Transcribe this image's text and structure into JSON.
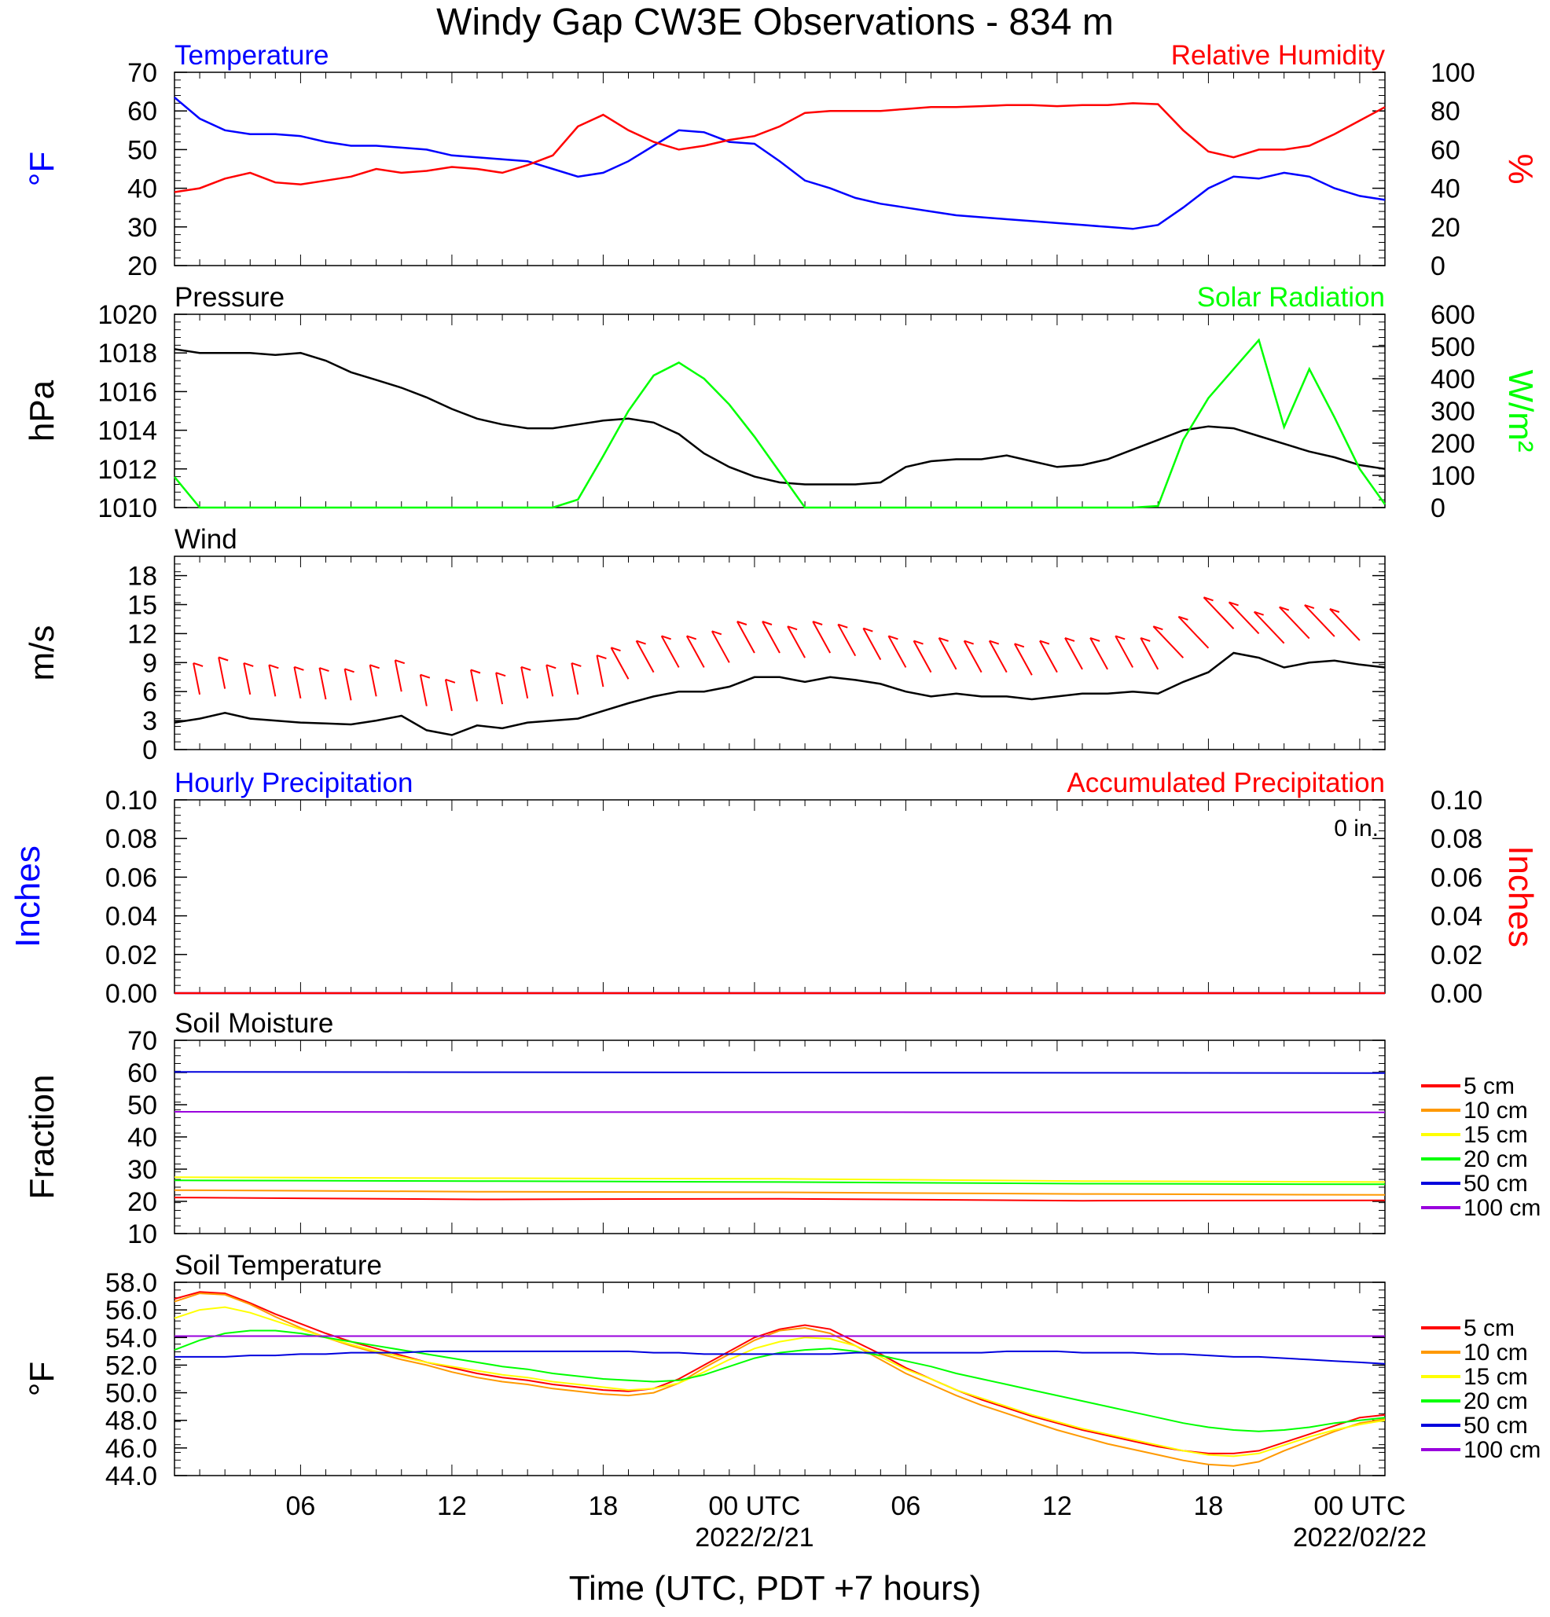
{
  "title": "Windy Gap CW3E Observations - 834 m",
  "x_axis": {
    "label": "Time (UTC, PDT +7 hours)",
    "range_hours": [
      0,
      48
    ],
    "ticks": [
      {
        "hour": 5,
        "label": "06"
      },
      {
        "hour": 11,
        "label": "12"
      },
      {
        "hour": 17,
        "label": "18"
      },
      {
        "hour": 23,
        "label": "00 UTC",
        "sublabel": "2022/2/21"
      },
      {
        "hour": 29,
        "label": "06"
      },
      {
        "hour": 35,
        "label": "12"
      },
      {
        "hour": 41,
        "label": "18"
      },
      {
        "hour": 47,
        "label": "00 UTC",
        "sublabel": "2022/02/22"
      }
    ]
  },
  "colors": {
    "blue": "#0000ff",
    "red": "#ff0000",
    "green": "#00ff00",
    "black": "#000000",
    "orange": "#ff9900",
    "yellow": "#ffff00",
    "soil_green": "#00ff00",
    "navy": "#0000dd",
    "purple": "#9900dd"
  },
  "chart_data": [
    {
      "type": "line",
      "panel": "temperature",
      "left_title": "Temperature",
      "right_title": "Relative Humidity",
      "ylabel_left": "°F",
      "ylabel_right": "%",
      "ylim_left": [
        20,
        70
      ],
      "yticks_left": [
        20,
        30,
        40,
        50,
        60,
        70
      ],
      "ylim_right": [
        0,
        100
      ],
      "yticks_right": [
        0,
        20,
        40,
        60,
        80,
        100
      ],
      "x_hours": [
        0,
        1,
        2,
        3,
        4,
        5,
        6,
        7,
        8,
        9,
        10,
        11,
        12,
        13,
        14,
        15,
        16,
        17,
        18,
        19,
        20,
        21,
        22,
        23,
        24,
        25,
        26,
        27,
        28,
        29,
        30,
        31,
        32,
        33,
        34,
        35,
        36,
        37,
        38,
        39,
        40,
        41,
        42,
        43,
        44,
        45,
        46,
        47,
        48
      ],
      "series": [
        {
          "name": "Temperature",
          "axis": "left",
          "color": "blue",
          "values": [
            63.5,
            58,
            55,
            54,
            54,
            53.5,
            52,
            51,
            51,
            50.5,
            50,
            48.5,
            48,
            47.5,
            47,
            45,
            43,
            44,
            47,
            51,
            55,
            54.5,
            52,
            51.5,
            47,
            42,
            40,
            37.5,
            36,
            35,
            34,
            33,
            32.5,
            32,
            31.5,
            31,
            30.5,
            30,
            29.5,
            30.5,
            35,
            40,
            43,
            42.5,
            44,
            43,
            40,
            38,
            37
          ]
        },
        {
          "name": "Relative Humidity",
          "axis": "right",
          "color": "red",
          "values": [
            38,
            40,
            45,
            48,
            43,
            42,
            44,
            46,
            50,
            48,
            49,
            51,
            50,
            48,
            52,
            57,
            72,
            78,
            70,
            64,
            60,
            62,
            65,
            67,
            72,
            79,
            80,
            80,
            80,
            81,
            82,
            82,
            82.5,
            83,
            83,
            82.5,
            83,
            83,
            84,
            83.5,
            70,
            59,
            56,
            60,
            60,
            62,
            68,
            75,
            82
          ]
        }
      ]
    },
    {
      "type": "line",
      "panel": "pressure",
      "left_title": "Pressure",
      "right_title": "Solar Radiation",
      "ylabel_left": "hPa",
      "ylabel_right": "W/m²",
      "ylim_left": [
        1010,
        1020
      ],
      "yticks_left": [
        1010,
        1012,
        1014,
        1016,
        1018,
        1020
      ],
      "ylim_right": [
        0,
        600
      ],
      "yticks_right": [
        0,
        100,
        200,
        300,
        400,
        500,
        600
      ],
      "x_hours": [
        0,
        1,
        2,
        3,
        4,
        5,
        6,
        7,
        8,
        9,
        10,
        11,
        12,
        13,
        14,
        15,
        16,
        17,
        18,
        19,
        20,
        21,
        22,
        23,
        24,
        25,
        26,
        27,
        28,
        29,
        30,
        31,
        32,
        33,
        34,
        35,
        36,
        37,
        38,
        39,
        40,
        41,
        42,
        43,
        44,
        45,
        46,
        47,
        48
      ],
      "series": [
        {
          "name": "Pressure",
          "axis": "left",
          "color": "black",
          "values": [
            1018.2,
            1018,
            1018,
            1018,
            1017.9,
            1018,
            1017.6,
            1017,
            1016.6,
            1016.2,
            1015.7,
            1015.1,
            1014.6,
            1014.3,
            1014.1,
            1014.1,
            1014.3,
            1014.5,
            1014.6,
            1014.4,
            1013.8,
            1012.8,
            1012.1,
            1011.6,
            1011.3,
            1011.2,
            1011.2,
            1011.2,
            1011.3,
            1012.1,
            1012.4,
            1012.5,
            1012.5,
            1012.7,
            1012.4,
            1012.1,
            1012.2,
            1012.5,
            1013,
            1013.5,
            1014,
            1014.2,
            1014.1,
            1013.7,
            1013.3,
            1012.9,
            1012.6,
            1012.2,
            1012
          ]
        },
        {
          "name": "Solar Radiation",
          "axis": "right",
          "color": "green",
          "values": [
            95,
            0,
            0,
            0,
            0,
            0,
            0,
            0,
            0,
            0,
            0,
            0,
            0,
            0,
            0,
            0,
            25,
            160,
            300,
            410,
            450,
            400,
            320,
            220,
            110,
            0,
            0,
            0,
            0,
            0,
            0,
            0,
            0,
            0,
            0,
            0,
            0,
            0,
            0,
            5,
            210,
            340,
            430,
            520,
            250,
            430,
            280,
            120,
            10
          ]
        }
      ]
    },
    {
      "type": "line",
      "panel": "wind",
      "left_title": "Wind",
      "ylabel_left": "m/s",
      "ylim_left": [
        0,
        20
      ],
      "yticks_left": [
        0,
        3,
        6,
        9,
        12,
        15,
        18
      ],
      "x_hours": [
        0,
        1,
        2,
        3,
        4,
        5,
        6,
        7,
        8,
        9,
        10,
        11,
        12,
        13,
        14,
        15,
        16,
        17,
        18,
        19,
        20,
        21,
        22,
        23,
        24,
        25,
        26,
        27,
        28,
        29,
        30,
        31,
        32,
        33,
        34,
        35,
        36,
        37,
        38,
        39,
        40,
        41,
        42,
        43,
        44,
        45,
        46,
        47,
        48
      ],
      "series": [
        {
          "name": "Wind speed",
          "axis": "left",
          "color": "black",
          "values": [
            2.8,
            3.2,
            3.8,
            3.2,
            3,
            2.8,
            2.7,
            2.6,
            3,
            3.5,
            2,
            1.5,
            2.5,
            2.2,
            2.8,
            3,
            3.2,
            4,
            4.8,
            5.5,
            6,
            6,
            6.5,
            7.5,
            7.5,
            7,
            7.5,
            7.2,
            6.8,
            6,
            5.5,
            5.8,
            5.5,
            5.5,
            5.2,
            5.5,
            5.8,
            5.8,
            6,
            5.8,
            7,
            8,
            10,
            9.5,
            8.5,
            9,
            9.2,
            8.8,
            8.5
          ]
        }
      ]
    },
    {
      "type": "line",
      "panel": "precipitation",
      "left_title": "Hourly Precipitation",
      "right_title": "Accumulated Precipitation",
      "annotation": "0 in.",
      "ylabel_left": "Inches",
      "ylabel_right": "Inches",
      "ylim_left": [
        0,
        0.1
      ],
      "yticks_left": [
        "0.00",
        "0.02",
        "0.04",
        "0.06",
        "0.08",
        "0.10"
      ],
      "ylim_right": [
        0,
        0.1
      ],
      "yticks_right": [
        "0.00",
        "0.02",
        "0.04",
        "0.06",
        "0.08",
        "0.10"
      ],
      "x_hours": [
        0,
        48
      ],
      "series": [
        {
          "name": "Hourly Precipitation",
          "axis": "left",
          "color": "blue",
          "values": [
            0,
            0
          ]
        },
        {
          "name": "Accumulated Precipitation",
          "axis": "right",
          "color": "red",
          "values": [
            0,
            0
          ]
        }
      ]
    },
    {
      "type": "line",
      "panel": "soil_moisture",
      "left_title": "Soil Moisture",
      "ylabel_left": "Fraction",
      "ylim_left": [
        10,
        70
      ],
      "yticks_left": [
        10,
        20,
        30,
        40,
        50,
        60,
        70
      ],
      "x_hours": [
        0,
        12,
        24,
        36,
        48
      ],
      "legend": [
        "5 cm",
        "10 cm",
        "15 cm",
        "20 cm",
        "50 cm",
        "100 cm"
      ],
      "series": [
        {
          "name": "5 cm",
          "axis": "left",
          "color": "red",
          "values": [
            21.2,
            20.6,
            20.8,
            20.2,
            20.3
          ]
        },
        {
          "name": "10 cm",
          "axis": "left",
          "color": "orange",
          "values": [
            23.5,
            23,
            22.8,
            22.3,
            22
          ]
        },
        {
          "name": "15 cm",
          "axis": "left",
          "color": "yellow",
          "values": [
            27.5,
            27.2,
            27,
            26.3,
            26
          ]
        },
        {
          "name": "20 cm",
          "axis": "left",
          "color": "soil_green",
          "values": [
            26.5,
            26.3,
            26,
            25.5,
            25.3
          ]
        },
        {
          "name": "50 cm",
          "axis": "left",
          "color": "navy",
          "values": [
            60.2,
            60.1,
            60,
            59.9,
            59.8
          ]
        },
        {
          "name": "100 cm",
          "axis": "left",
          "color": "purple",
          "values": [
            47.8,
            47.7,
            47.7,
            47.6,
            47.6
          ]
        }
      ]
    },
    {
      "type": "line",
      "panel": "soil_temperature",
      "left_title": "Soil Temperature",
      "ylabel_left": "°F",
      "ylim_left": [
        44,
        58
      ],
      "yticks_left": [
        "44.0",
        "46.0",
        "48.0",
        "50.0",
        "52.0",
        "54.0",
        "56.0",
        "58.0"
      ],
      "x_hours": [
        0,
        1,
        2,
        3,
        4,
        5,
        6,
        7,
        8,
        9,
        10,
        11,
        12,
        13,
        14,
        15,
        16,
        17,
        18,
        19,
        20,
        21,
        22,
        23,
        24,
        25,
        26,
        27,
        28,
        29,
        30,
        31,
        32,
        33,
        34,
        35,
        36,
        37,
        38,
        39,
        40,
        41,
        42,
        43,
        44,
        45,
        46,
        47,
        48
      ],
      "legend": [
        "5 cm",
        "10 cm",
        "15 cm",
        "20 cm",
        "50 cm",
        "100 cm"
      ],
      "series": [
        {
          "name": "5 cm",
          "axis": "left",
          "color": "red",
          "values": [
            56.8,
            57.3,
            57.2,
            56.5,
            55.7,
            55,
            54.3,
            53.7,
            53.2,
            52.7,
            52.2,
            51.8,
            51.4,
            51.1,
            50.9,
            50.6,
            50.4,
            50.2,
            50.1,
            50.3,
            51,
            52,
            53,
            54,
            54.6,
            54.9,
            54.6,
            53.7,
            52.8,
            51.8,
            51,
            50.2,
            49.5,
            48.9,
            48.3,
            47.8,
            47.3,
            46.9,
            46.5,
            46.1,
            45.8,
            45.6,
            45.6,
            45.8,
            46.4,
            47,
            47.6,
            48.2,
            48.4
          ]
        },
        {
          "name": "10 cm",
          "axis": "left",
          "color": "orange",
          "values": [
            56.6,
            57.2,
            57.1,
            56.4,
            55.5,
            54.7,
            54,
            53.4,
            52.9,
            52.4,
            52,
            51.5,
            51.1,
            50.8,
            50.6,
            50.3,
            50.1,
            49.9,
            49.8,
            50,
            50.7,
            51.8,
            52.8,
            53.8,
            54.5,
            54.7,
            54.3,
            53.4,
            52.4,
            51.4,
            50.6,
            49.8,
            49.1,
            48.5,
            47.9,
            47.3,
            46.8,
            46.3,
            45.9,
            45.5,
            45.1,
            44.8,
            44.7,
            45,
            45.8,
            46.5,
            47.2,
            47.8,
            48.1
          ]
        },
        {
          "name": "15 cm",
          "axis": "left",
          "color": "yellow",
          "values": [
            55.4,
            56,
            56.2,
            55.8,
            55.2,
            54.6,
            54,
            53.5,
            53,
            52.6,
            52.2,
            51.9,
            51.6,
            51.3,
            51.1,
            50.8,
            50.6,
            50.4,
            50.2,
            50.3,
            50.7,
            51.5,
            52.4,
            53.2,
            53.7,
            54,
            53.9,
            53.4,
            52.6,
            51.7,
            51,
            50.2,
            49.6,
            49,
            48.4,
            47.9,
            47.4,
            47,
            46.6,
            46.2,
            45.8,
            45.5,
            45.4,
            45.6,
            46.2,
            46.8,
            47.3,
            47.7,
            48
          ]
        },
        {
          "name": "20 cm",
          "axis": "left",
          "color": "soil_green",
          "values": [
            53.1,
            53.8,
            54.3,
            54.5,
            54.5,
            54.3,
            54,
            53.7,
            53.4,
            53.1,
            52.8,
            52.5,
            52.2,
            51.9,
            51.7,
            51.4,
            51.2,
            51,
            50.9,
            50.8,
            50.9,
            51.3,
            51.9,
            52.5,
            52.9,
            53.1,
            53.2,
            53,
            52.7,
            52.3,
            51.9,
            51.4,
            51,
            50.6,
            50.2,
            49.8,
            49.4,
            49,
            48.6,
            48.2,
            47.8,
            47.5,
            47.3,
            47.2,
            47.3,
            47.5,
            47.8,
            48,
            48.2
          ]
        },
        {
          "name": "50 cm",
          "axis": "left",
          "color": "navy",
          "values": [
            52.6,
            52.6,
            52.6,
            52.7,
            52.7,
            52.8,
            52.8,
            52.9,
            52.9,
            52.9,
            53,
            53,
            53,
            53,
            53,
            53,
            53,
            53,
            53,
            52.9,
            52.9,
            52.8,
            52.8,
            52.8,
            52.8,
            52.8,
            52.8,
            52.9,
            52.9,
            52.9,
            52.9,
            52.9,
            52.9,
            53,
            53,
            53,
            52.9,
            52.9,
            52.9,
            52.8,
            52.8,
            52.7,
            52.6,
            52.6,
            52.5,
            52.4,
            52.3,
            52.2,
            52.1
          ]
        },
        {
          "name": "100 cm",
          "axis": "left",
          "color": "purple",
          "values": [
            54.1,
            54.1,
            54.1,
            54.1,
            54.1,
            54.1,
            54.1,
            54.1,
            54.1,
            54.1,
            54.1,
            54.1,
            54.1,
            54.1,
            54.1,
            54.1,
            54.1,
            54.1,
            54.1,
            54.1,
            54.1,
            54.1,
            54.1,
            54.1,
            54.1,
            54.1,
            54.1,
            54.1,
            54.1,
            54.1,
            54.1,
            54.1,
            54.1,
            54.1,
            54.1,
            54.1,
            54.1,
            54.1,
            54.1,
            54.1,
            54.1,
            54.1,
            54.1,
            54.1,
            54.1,
            54.1,
            54.1,
            54.1,
            54.1
          ]
        }
      ]
    }
  ]
}
